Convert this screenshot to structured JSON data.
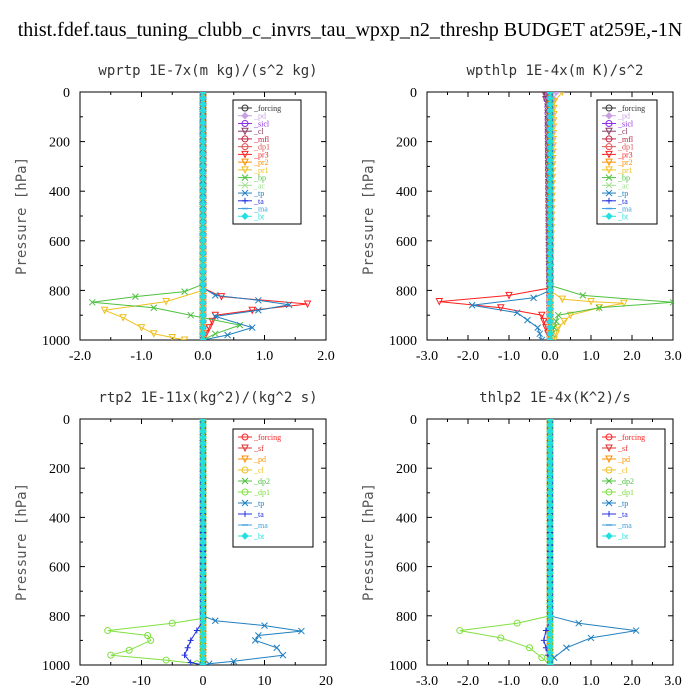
{
  "figure_title": "thist.fdef.taus_tuning_clubb_c_invrs_tau_wpxp_n2_threshp  BUDGET at259E,-1N",
  "chart_data": [
    {
      "type": "line",
      "title": "wprtp  1E-7x(m kg)/(s^2 kg)",
      "ylabel": "Pressure [hPa]",
      "xlim": [
        -2,
        2
      ],
      "ylim": [
        1000,
        0
      ],
      "xticks": [
        -2,
        -1,
        0,
        1,
        2
      ],
      "xtick_labels": [
        "-2.0",
        "-1.0",
        "0.0",
        "1.0",
        "2.0"
      ],
      "yticks": [
        0,
        200,
        400,
        600,
        800,
        1000
      ],
      "ytick_labels": [
        "0",
        "200",
        "400",
        "600",
        "800",
        "1000"
      ],
      "legend_position": "top-right",
      "series": [
        {
          "name": "_forcing",
          "color": "#333333",
          "marker": "circle",
          "x": [
            0,
            0,
            0,
            0,
            0,
            0,
            0,
            0,
            0,
            0
          ],
          "y": [
            0,
            100,
            200,
            300,
            400,
            500,
            600,
            700,
            850,
            1000
          ]
        },
        {
          "name": "_pd",
          "color": "#c8a0e0",
          "marker": "diamond",
          "x": [
            0,
            0
          ],
          "y": [
            0,
            1000
          ]
        },
        {
          "name": "_sicl",
          "color": "#8a2be2",
          "marker": "circle",
          "x": [
            0,
            0
          ],
          "y": [
            0,
            1000
          ]
        },
        {
          "name": "_cl",
          "color": "#8b3a62",
          "marker": "triangle",
          "x": [
            0,
            0
          ],
          "y": [
            0,
            1000
          ]
        },
        {
          "name": "_mfl",
          "color": "#c02040",
          "marker": "circle",
          "x": [
            0,
            0
          ],
          "y": [
            0,
            1000
          ]
        },
        {
          "name": "_dp1",
          "color": "#e05050",
          "marker": "circle",
          "x": [
            0,
            0
          ],
          "y": [
            0,
            1000
          ]
        },
        {
          "name": "_pr3",
          "color": "#ff2020",
          "marker": "triangle",
          "x": [
            0,
            0,
            0.3,
            1.7,
            0.8,
            0.2,
            0
          ],
          "y": [
            0,
            790,
            825,
            855,
            880,
            900,
            1000
          ]
        },
        {
          "name": "_pr2",
          "color": "#ff9000",
          "marker": "triangle",
          "x": [
            0,
            0
          ],
          "y": [
            0,
            1000
          ]
        },
        {
          "name": "_pr1",
          "color": "#f0c020",
          "marker": "triangle",
          "x": [
            0,
            0,
            -0.6,
            -1.6,
            -1.3,
            -1.0,
            -0.8,
            -0.5,
            -0.3
          ],
          "y": [
            0,
            800,
            845,
            880,
            910,
            950,
            975,
            990,
            1000
          ]
        },
        {
          "name": "_bp",
          "color": "#50c040",
          "marker": "x",
          "x": [
            0,
            0,
            -0.3,
            -1.1,
            -1.8,
            -0.8,
            -0.2,
            0.6,
            0.2,
            0
          ],
          "y": [
            0,
            775,
            805,
            825,
            848,
            870,
            900,
            940,
            975,
            1000
          ]
        },
        {
          "name": "_ac",
          "color": "#a0e090",
          "marker": "x",
          "x": [
            0,
            0
          ],
          "y": [
            0,
            1000
          ]
        },
        {
          "name": "_tp",
          "color": "#2080c0",
          "marker": "x",
          "x": [
            0,
            0,
            0.2,
            0.9,
            1.4,
            0.9,
            0.2,
            0.8,
            0.4,
            0
          ],
          "y": [
            0,
            790,
            820,
            840,
            858,
            880,
            905,
            950,
            980,
            1000
          ]
        },
        {
          "name": "_ta",
          "color": "#2030e0",
          "marker": "plus",
          "x": [
            0,
            0
          ],
          "y": [
            0,
            1000
          ]
        },
        {
          "name": "_ma",
          "color": "#40a0e0",
          "marker": "dash",
          "x": [
            0,
            0
          ],
          "y": [
            0,
            1000
          ]
        },
        {
          "name": "_bt",
          "color": "#20e0e0",
          "marker": "diamond",
          "x": [
            0,
            0
          ],
          "y": [
            0,
            1000
          ]
        }
      ]
    },
    {
      "type": "line",
      "title": "wpthlp  1E-4x(m K)/s^2",
      "ylabel": "Pressure [hPa]",
      "xlim": [
        -3,
        3
      ],
      "ylim": [
        1000,
        0
      ],
      "xticks": [
        -3,
        -2,
        -1,
        0,
        1,
        2,
        3
      ],
      "xtick_labels": [
        "-3.0",
        "-2.0",
        "-1.0",
        "0.0",
        "1.0",
        "2.0",
        "3.0"
      ],
      "yticks": [
        0,
        200,
        400,
        600,
        800,
        1000
      ],
      "ytick_labels": [
        "0",
        "200",
        "400",
        "600",
        "800",
        "1000"
      ],
      "legend_position": "top-right",
      "series": [
        {
          "name": "_forcing",
          "color": "#333333",
          "marker": "circle",
          "x": [
            0,
            0
          ],
          "y": [
            0,
            1000
          ]
        },
        {
          "name": "_pd",
          "color": "#c8a0e0",
          "marker": "diamond",
          "x": [
            0.15,
            0.05,
            0
          ],
          "y": [
            0,
            60,
            1000
          ]
        },
        {
          "name": "_sicl",
          "color": "#8a2be2",
          "marker": "circle",
          "x": [
            -0.1,
            -0.05,
            0
          ],
          "y": [
            0,
            60,
            1000
          ]
        },
        {
          "name": "_cl",
          "color": "#8b3a62",
          "marker": "triangle",
          "x": [
            -0.15,
            -0.05,
            0
          ],
          "y": [
            0,
            60,
            1000
          ]
        },
        {
          "name": "_mfl",
          "color": "#c02040",
          "marker": "circle",
          "x": [
            0,
            0
          ],
          "y": [
            0,
            1000
          ]
        },
        {
          "name": "_dp1",
          "color": "#e05050",
          "marker": "circle",
          "x": [
            0,
            0
          ],
          "y": [
            0,
            1000
          ]
        },
        {
          "name": "_pr3",
          "color": "#ff2020",
          "marker": "triangle",
          "x": [
            0,
            0,
            -1.0,
            -2.7,
            -1.2,
            -0.2,
            0
          ],
          "y": [
            0,
            790,
            820,
            845,
            870,
            900,
            1000
          ]
        },
        {
          "name": "_pr2",
          "color": "#ff9000",
          "marker": "triangle",
          "x": [
            0,
            0
          ],
          "y": [
            0,
            1000
          ]
        },
        {
          "name": "_pr1",
          "color": "#f0c020",
          "marker": "triangle",
          "x": [
            0.3,
            0.1,
            0,
            0.3,
            1.0,
            1.8,
            1.2,
            0.5,
            0.2,
            0.1
          ],
          "y": [
            0,
            40,
            800,
            835,
            845,
            852,
            870,
            900,
            950,
            1000
          ]
        },
        {
          "name": "_bp",
          "color": "#50c040",
          "marker": "x",
          "x": [
            0,
            0,
            0.8,
            3.0,
            1.2,
            0.2,
            0
          ],
          "y": [
            0,
            780,
            820,
            848,
            870,
            900,
            1000
          ]
        },
        {
          "name": "_ac",
          "color": "#a0e090",
          "marker": "x",
          "x": [
            0,
            0
          ],
          "y": [
            0,
            1000
          ]
        },
        {
          "name": "_tp",
          "color": "#2080c0",
          "marker": "x",
          "x": [
            0,
            0,
            -0.4,
            -1.9,
            -0.8,
            -0.3,
            -0.2
          ],
          "y": [
            0,
            800,
            830,
            860,
            890,
            950,
            1000
          ]
        },
        {
          "name": "_ta",
          "color": "#2030e0",
          "marker": "plus",
          "x": [
            0,
            0
          ],
          "y": [
            0,
            1000
          ]
        },
        {
          "name": "_ma",
          "color": "#40a0e0",
          "marker": "dash",
          "x": [
            0,
            0
          ],
          "y": [
            0,
            1000
          ]
        },
        {
          "name": "_bt",
          "color": "#20e0e0",
          "marker": "diamond",
          "x": [
            0,
            0
          ],
          "y": [
            0,
            1000
          ]
        }
      ]
    },
    {
      "type": "line",
      "title": "rtp2  1E-11x(kg^2)/(kg^2 s)",
      "ylabel": "Pressure [hPa]",
      "xlim": [
        -20,
        20
      ],
      "ylim": [
        1000,
        0
      ],
      "xticks": [
        -20,
        -10,
        0,
        10,
        20
      ],
      "xtick_labels": [
        "-20",
        "-10",
        "0",
        "10",
        "20"
      ],
      "yticks": [
        0,
        200,
        400,
        600,
        800,
        1000
      ],
      "ytick_labels": [
        "0",
        "200",
        "400",
        "600",
        "800",
        "1000"
      ],
      "legend_position": "top-right",
      "series": [
        {
          "name": "_forcing",
          "color": "#ff2020",
          "marker": "circle",
          "x": [
            0,
            0
          ],
          "y": [
            0,
            1000
          ]
        },
        {
          "name": "_sf",
          "color": "#e03030",
          "marker": "triangle",
          "x": [
            0,
            0,
            0,
            0,
            0,
            0,
            0,
            0,
            0,
            0,
            0,
            0,
            0,
            0,
            0,
            0,
            0,
            0,
            0,
            0
          ],
          "y": [
            0,
            50,
            100,
            150,
            200,
            250,
            300,
            350,
            400,
            450,
            500,
            550,
            600,
            650,
            700,
            750,
            800,
            850,
            900,
            1000
          ]
        },
        {
          "name": "_pd",
          "color": "#ff9000",
          "marker": "triangle",
          "x": [
            0,
            0
          ],
          "y": [
            0,
            1000
          ]
        },
        {
          "name": "_cl",
          "color": "#f0c020",
          "marker": "circle",
          "x": [
            0,
            0
          ],
          "y": [
            0,
            1000
          ]
        },
        {
          "name": "_dp2",
          "color": "#50c040",
          "marker": "x",
          "x": [
            0,
            0
          ],
          "y": [
            0,
            1000
          ]
        },
        {
          "name": "_dp1",
          "color": "#80e040",
          "marker": "circle",
          "x": [
            0,
            0,
            -5,
            -15.5,
            -9,
            -8.5,
            -12,
            -15,
            -6,
            -1,
            0
          ],
          "y": [
            0,
            810,
            830,
            860,
            880,
            900,
            940,
            960,
            980,
            995,
            1000
          ]
        },
        {
          "name": "_tp",
          "color": "#2080c0",
          "marker": "x",
          "x": [
            0,
            0,
            2,
            10,
            16,
            9,
            8.5,
            12,
            13,
            5,
            1,
            0
          ],
          "y": [
            0,
            800,
            820,
            840,
            862,
            880,
            900,
            930,
            960,
            985,
            995,
            1000
          ]
        },
        {
          "name": "_ta",
          "color": "#2030e0",
          "marker": "plus",
          "x": [
            0,
            0,
            -1,
            -2,
            -3,
            -2,
            0
          ],
          "y": [
            0,
            820,
            860,
            900,
            960,
            990,
            1000
          ]
        },
        {
          "name": "_ma",
          "color": "#40a0e0",
          "marker": "dash",
          "x": [
            0,
            0
          ],
          "y": [
            0,
            1000
          ]
        },
        {
          "name": "_bt",
          "color": "#20e0e0",
          "marker": "diamond",
          "x": [
            0,
            0
          ],
          "y": [
            0,
            1000
          ]
        }
      ]
    },
    {
      "type": "line",
      "title": "thlp2  1E-4x(K^2)/s",
      "ylabel": "Pressure [hPa]",
      "xlim": [
        -3,
        3
      ],
      "ylim": [
        1000,
        0
      ],
      "xticks": [
        -3,
        -2,
        -1,
        0,
        1,
        2,
        3
      ],
      "xtick_labels": [
        "-3.0",
        "-2.0",
        "-1.0",
        "0.0",
        "1.0",
        "2.0",
        "3.0"
      ],
      "yticks": [
        0,
        200,
        400,
        600,
        800,
        1000
      ],
      "ytick_labels": [
        "0",
        "200",
        "400",
        "600",
        "800",
        "1000"
      ],
      "legend_position": "top-right",
      "series": [
        {
          "name": "_forcing",
          "color": "#ff2020",
          "marker": "circle",
          "x": [
            0,
            0
          ],
          "y": [
            0,
            1000
          ]
        },
        {
          "name": "_sf",
          "color": "#e03030",
          "marker": "triangle",
          "x": [
            0,
            0,
            0,
            0,
            0,
            0,
            0,
            0,
            0,
            0,
            0,
            0,
            0,
            0,
            0,
            0,
            0,
            0,
            0,
            0
          ],
          "y": [
            0,
            50,
            100,
            150,
            200,
            250,
            300,
            350,
            400,
            450,
            500,
            550,
            600,
            650,
            700,
            750,
            800,
            850,
            900,
            1000
          ]
        },
        {
          "name": "_pd",
          "color": "#ff9000",
          "marker": "triangle",
          "x": [
            0,
            0
          ],
          "y": [
            0,
            1000
          ]
        },
        {
          "name": "_cl",
          "color": "#f0c020",
          "marker": "circle",
          "x": [
            0,
            0
          ],
          "y": [
            0,
            1000
          ]
        },
        {
          "name": "_dp2",
          "color": "#50c040",
          "marker": "x",
          "x": [
            0,
            0
          ],
          "y": [
            0,
            1000
          ]
        },
        {
          "name": "_dp1",
          "color": "#80e040",
          "marker": "circle",
          "x": [
            0,
            0,
            -0.8,
            -2.2,
            -1.2,
            -0.5,
            -0.2,
            0
          ],
          "y": [
            0,
            800,
            830,
            860,
            890,
            930,
            970,
            1000
          ]
        },
        {
          "name": "_tp",
          "color": "#2080c0",
          "marker": "x",
          "x": [
            0,
            0,
            0.7,
            2.1,
            1.0,
            0.4,
            0.1,
            0
          ],
          "y": [
            0,
            800,
            830,
            860,
            890,
            930,
            970,
            1000
          ]
        },
        {
          "name": "_ta",
          "color": "#2030e0",
          "marker": "plus",
          "x": [
            0,
            0,
            -0.1,
            -0.15,
            -0.05,
            0
          ],
          "y": [
            0,
            820,
            860,
            900,
            960,
            1000
          ]
        },
        {
          "name": "_ma",
          "color": "#40a0e0",
          "marker": "dash",
          "x": [
            0,
            0
          ],
          "y": [
            0,
            1000
          ]
        },
        {
          "name": "_bt",
          "color": "#20e0e0",
          "marker": "diamond",
          "x": [
            0,
            0
          ],
          "y": [
            0,
            1000
          ]
        }
      ]
    }
  ]
}
